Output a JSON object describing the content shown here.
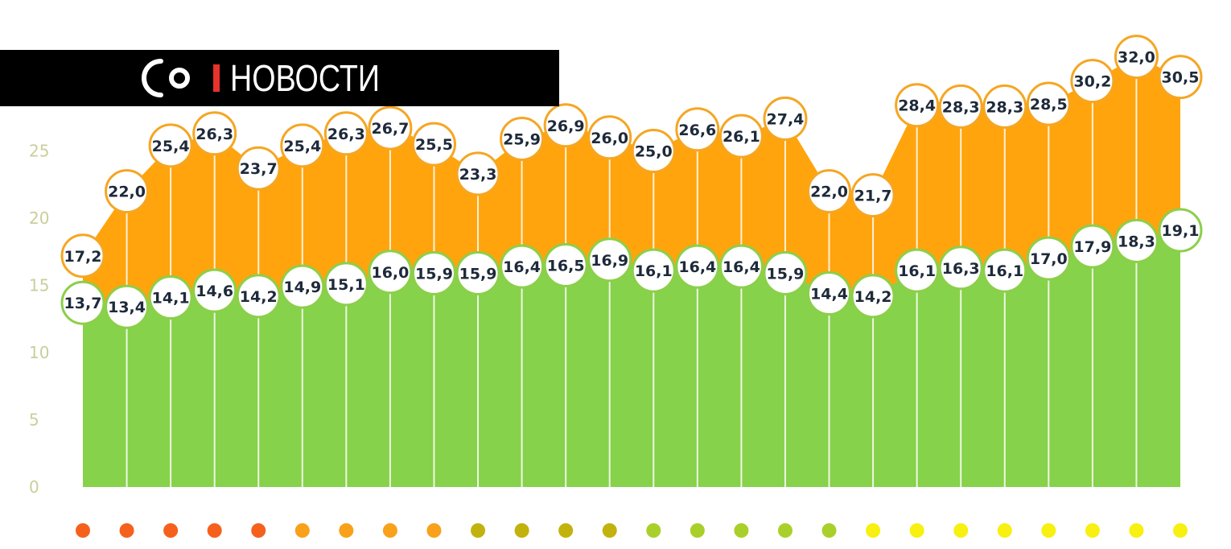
{
  "brand": {
    "name": "НОВОСТИ",
    "colors": {
      "background": "#000000",
      "text": "#ffffff",
      "separator": "#e8322c"
    }
  },
  "chart_data": {
    "type": "area",
    "title": "",
    "xlabel": "",
    "ylabel": "",
    "ylim": [
      0,
      33
    ],
    "y_ticks": [
      0,
      5,
      10,
      15,
      20,
      25
    ],
    "grid": false,
    "legend": "none",
    "series": [
      {
        "color": "#ffa40c",
        "values": [
          17.2,
          22.0,
          25.4,
          26.3,
          23.7,
          25.4,
          26.3,
          26.7,
          25.5,
          23.3,
          25.9,
          26.9,
          26.0,
          25.0,
          26.6,
          26.1,
          27.4,
          22.0,
          21.7,
          28.4,
          28.3,
          28.3,
          28.5,
          30.2,
          32.0,
          30.5
        ]
      },
      {
        "color": "#86d24a",
        "values": [
          13.7,
          13.4,
          14.1,
          14.6,
          14.2,
          14.9,
          15.1,
          16.0,
          15.9,
          15.9,
          16.4,
          16.5,
          16.9,
          16.1,
          16.4,
          16.4,
          15.9,
          14.4,
          14.2,
          16.1,
          16.3,
          16.1,
          17.0,
          17.9,
          18.3,
          19.1
        ]
      }
    ],
    "category_dot_colors": [
      "#f5611c",
      "#f5611c",
      "#f5611c",
      "#f5611c",
      "#f5611c",
      "#f9a11b",
      "#f9a11b",
      "#f9a11b",
      "#f9a11b",
      "#c2b20d",
      "#c2b20d",
      "#c2b20d",
      "#c2b20d",
      "#a9d02a",
      "#a9d02a",
      "#a9d02a",
      "#a9d02a",
      "#a9d02a",
      "#f7f010",
      "#f7f010",
      "#f7f010",
      "#f7f010",
      "#f7f010",
      "#f7f010",
      "#f7f010",
      "#f7f010"
    ]
  }
}
